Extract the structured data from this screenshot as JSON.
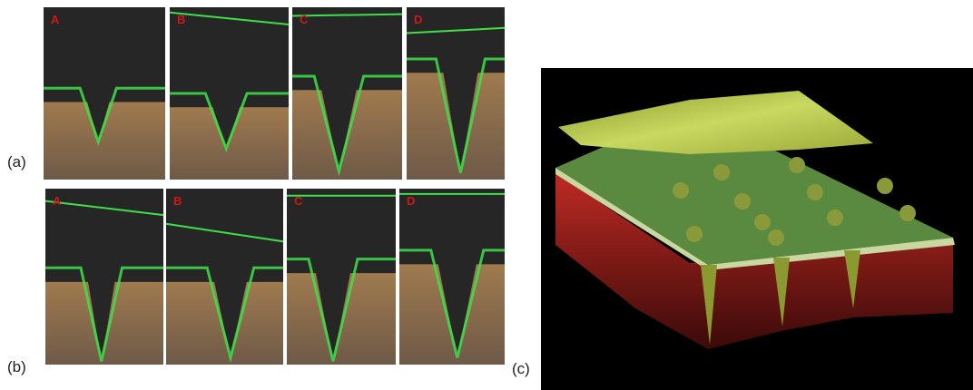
{
  "rows": [
    {
      "label": "(a)",
      "panels": [
        "A",
        "B",
        "C",
        "D"
      ]
    },
    {
      "label": "(b)",
      "panels": [
        "A",
        "B",
        "C",
        "D"
      ]
    }
  ],
  "panel_c": {
    "label": "(c)"
  }
}
